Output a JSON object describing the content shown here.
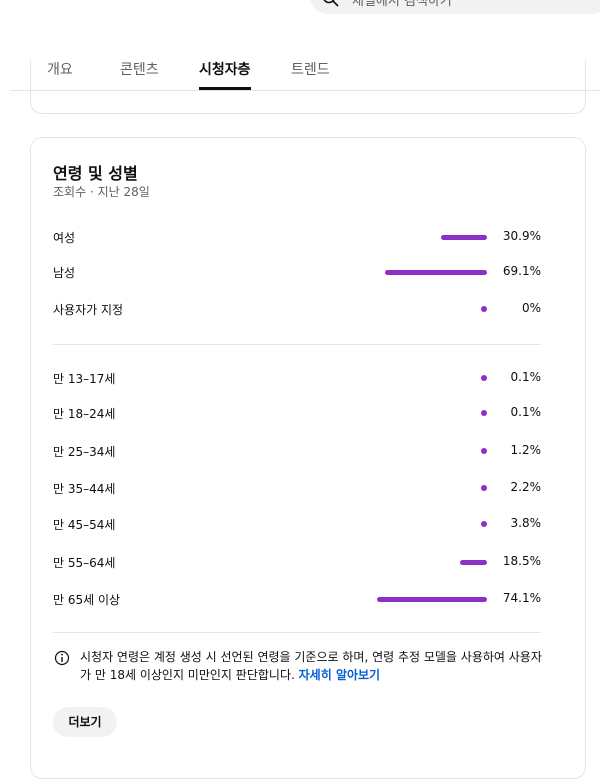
{
  "search": {
    "placeholder": "채널에서 검색하기"
  },
  "tabs": [
    {
      "label": "개요"
    },
    {
      "label": "콘텐츠"
    },
    {
      "label": "시청자층",
      "active": true
    },
    {
      "label": "트렌드"
    }
  ],
  "card": {
    "title": "연령 및 성별",
    "subtitle": "조회수 · 지난 28일",
    "gender": [
      {
        "label": "여성",
        "value": 30.9,
        "value_label": "30.9%"
      },
      {
        "label": "남성",
        "value": 69.1,
        "value_label": "69.1%"
      },
      {
        "label": "사용자가 지정",
        "value": 0,
        "value_label": "0%"
      }
    ],
    "age": [
      {
        "label": "만 13–17세",
        "value": 0.1,
        "value_label": "0.1%"
      },
      {
        "label": "만 18–24세",
        "value": 0.1,
        "value_label": "0.1%"
      },
      {
        "label": "만 25–34세",
        "value": 1.2,
        "value_label": "1.2%"
      },
      {
        "label": "만 35–44세",
        "value": 2.2,
        "value_label": "2.2%"
      },
      {
        "label": "만 45–54세",
        "value": 3.8,
        "value_label": "3.8%"
      },
      {
        "label": "만 55–64세",
        "value": 18.5,
        "value_label": "18.5%"
      },
      {
        "label": "만 65세 이상",
        "value": 74.1,
        "value_label": "74.1%"
      }
    ],
    "bar_color": "#8e2fc7",
    "note": "시청자 연령은 계정 생성 시 선언된 연령을 기준으로 하며, 연령 추정 모델을 사용하여 사용자가 만 18세 이상인지 미만인지 판단합니다.",
    "learn_more": "자세히 알아보기",
    "more_button": "더보기"
  }
}
